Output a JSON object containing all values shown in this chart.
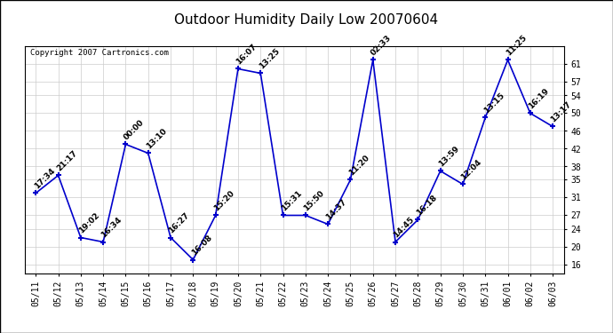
{
  "title": "Outdoor Humidity Daily Low 20070604",
  "copyright": "Copyright 2007 Cartronics.com",
  "line_color": "#0000CC",
  "marker_color": "#0000CC",
  "bg_color": "#ffffff",
  "grid_color": "#cccccc",
  "border_color": "#000000",
  "xlabels": [
    "05/11",
    "05/12",
    "05/13",
    "05/14",
    "05/15",
    "05/16",
    "05/17",
    "05/18",
    "05/19",
    "05/20",
    "05/21",
    "05/22",
    "05/23",
    "05/24",
    "05/25",
    "05/26",
    "05/27",
    "05/28",
    "05/29",
    "05/30",
    "05/31",
    "06/01",
    "06/02",
    "06/03"
  ],
  "yvalues": [
    32,
    36,
    22,
    21,
    43,
    41,
    22,
    17,
    27,
    60,
    59,
    27,
    27,
    25,
    35,
    62,
    21,
    26,
    37,
    34,
    49,
    62,
    50,
    47
  ],
  "time_labels": [
    "17:34",
    "21:17",
    "19:02",
    "16:34",
    "00:00",
    "13:10",
    "16:27",
    "16:08",
    "15:20",
    "16:07",
    "13:25",
    "15:31",
    "15:50",
    "14:37",
    "11:20",
    "02:33",
    "14:45",
    "16:18",
    "13:59",
    "12:04",
    "13:15",
    "11:25",
    "16:19",
    "13:17"
  ],
  "yticks": [
    16,
    20,
    24,
    27,
    31,
    35,
    38,
    42,
    46,
    50,
    54,
    57,
    61
  ],
  "ylim": [
    14,
    65
  ],
  "title_fontsize": 11,
  "label_fontsize": 6.5,
  "tick_fontsize": 7,
  "copyright_fontsize": 6.5
}
